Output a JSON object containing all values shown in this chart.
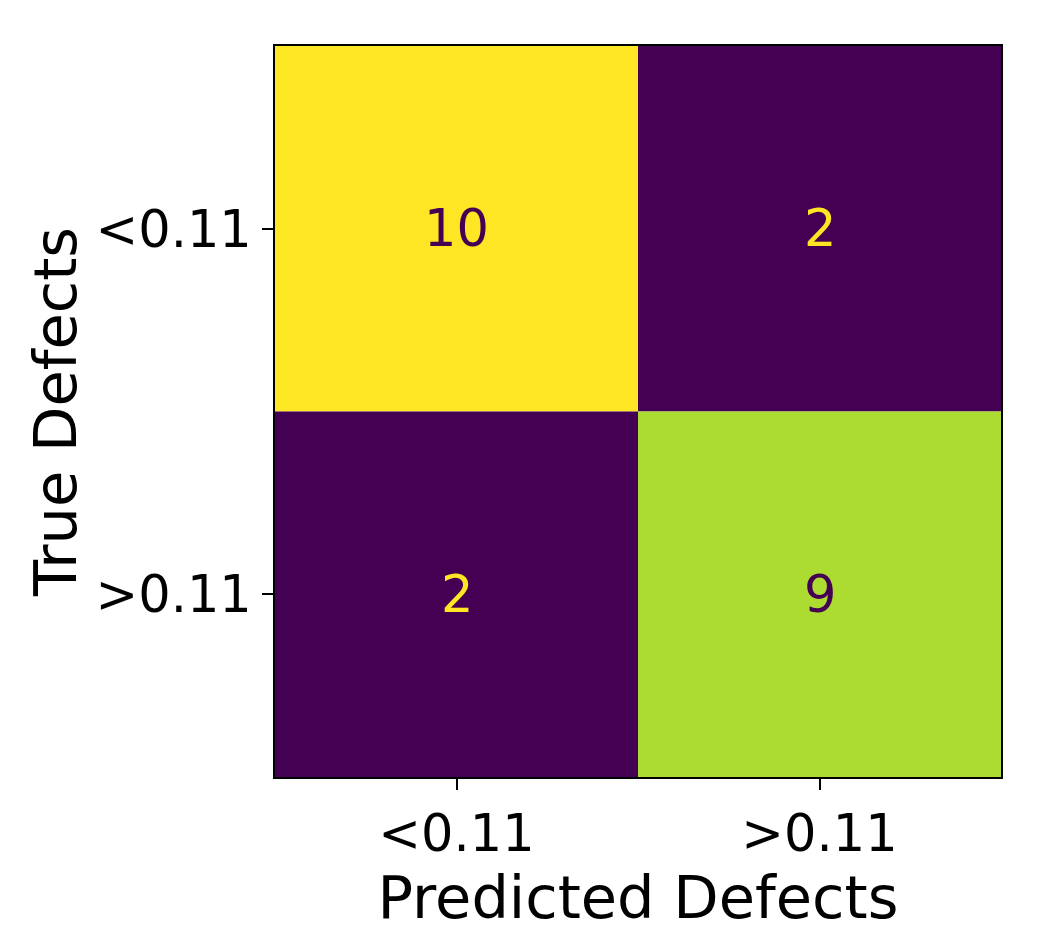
{
  "chart_data": {
    "type": "heatmap",
    "xlabel": "Predicted Defects",
    "ylabel": "True Defects",
    "categories": [
      "<0.11",
      ">0.11"
    ],
    "y_categories": [
      "<0.11",
      ">0.11"
    ],
    "cells": [
      [
        10,
        2
      ],
      [
        2,
        9
      ]
    ],
    "data_labels": true
  }
}
